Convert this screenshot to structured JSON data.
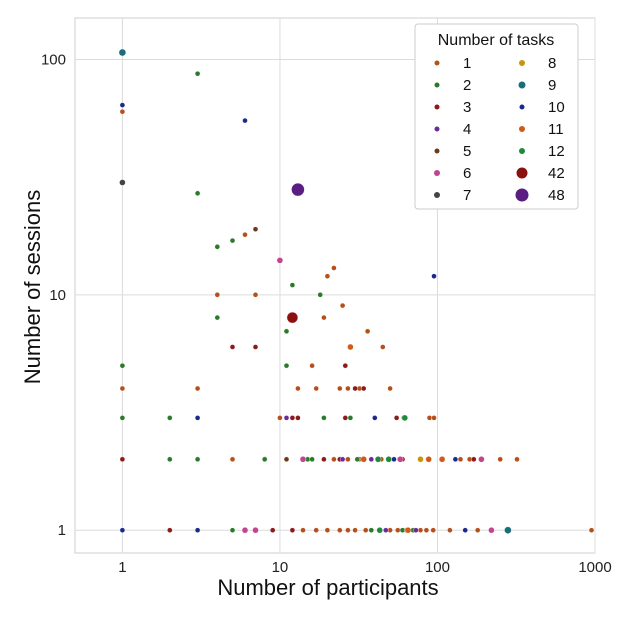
{
  "chart_data": {
    "type": "scatter",
    "xlabel": "Number of participants",
    "ylabel": "Number of sessions",
    "x_scale": "log",
    "y_scale": "log",
    "xlim": [
      0.5,
      1000
    ],
    "ylim": [
      0.8,
      150
    ],
    "x_ticks": [
      {
        "value": 1,
        "label": "1"
      },
      {
        "value": 10,
        "label": "10"
      },
      {
        "value": 100,
        "label": "100"
      },
      {
        "value": 1000,
        "label": "1000"
      }
    ],
    "y_ticks": [
      {
        "value": 1,
        "label": "1"
      },
      {
        "value": 10,
        "label": "10"
      },
      {
        "value": 100,
        "label": "100"
      }
    ],
    "grid": true,
    "legend": {
      "title": "Number of tasks",
      "position": "top-right",
      "columns": [
        [
          "1",
          "2",
          "3",
          "4",
          "5",
          "6",
          "7"
        ],
        [
          "8",
          "9",
          "10",
          "11",
          "12",
          "42",
          "48"
        ]
      ]
    },
    "series": [
      {
        "name": "1",
        "color": "#b5501c",
        "size": 2.5,
        "points": [
          [
            1,
            4
          ],
          [
            1,
            60
          ],
          [
            3,
            4
          ],
          [
            4,
            10
          ],
          [
            6,
            18
          ],
          [
            7,
            10
          ],
          [
            13,
            4
          ],
          [
            16,
            5
          ],
          [
            17,
            4
          ],
          [
            19,
            8
          ],
          [
            20,
            12
          ],
          [
            22,
            13
          ],
          [
            25,
            9
          ],
          [
            24,
            4
          ],
          [
            27,
            4
          ],
          [
            28,
            6
          ],
          [
            32,
            4
          ],
          [
            36,
            7
          ],
          [
            45,
            6
          ],
          [
            50,
            4
          ],
          [
            62,
            3
          ],
          [
            89,
            3
          ],
          [
            95,
            3
          ],
          [
            140,
            2
          ],
          [
            160,
            2
          ],
          [
            250,
            2
          ],
          [
            320,
            2
          ],
          [
            5,
            2
          ],
          [
            8,
            2
          ],
          [
            10,
            3
          ],
          [
            12,
            1
          ],
          [
            14,
            1
          ],
          [
            17,
            1
          ],
          [
            20,
            1
          ],
          [
            24,
            1
          ],
          [
            27,
            1
          ],
          [
            30,
            1
          ],
          [
            35,
            1
          ],
          [
            43,
            1
          ],
          [
            50,
            1
          ],
          [
            56,
            1
          ],
          [
            63,
            1
          ],
          [
            72,
            1
          ],
          [
            78,
            1
          ],
          [
            85,
            1
          ],
          [
            94,
            1
          ],
          [
            120,
            1
          ],
          [
            180,
            1
          ],
          [
            950,
            1
          ],
          [
            22,
            2
          ],
          [
            27,
            2
          ],
          [
            32,
            2
          ],
          [
            44,
            2
          ]
        ]
      },
      {
        "name": "2",
        "color": "#2a7a2a",
        "size": 2.5,
        "points": [
          [
            1,
            5
          ],
          [
            1,
            3
          ],
          [
            3,
            87
          ],
          [
            3,
            27
          ],
          [
            4,
            16
          ],
          [
            5,
            17
          ],
          [
            4,
            8
          ],
          [
            2,
            3
          ],
          [
            2,
            2
          ],
          [
            3,
            2
          ],
          [
            8,
            2
          ],
          [
            5,
            1
          ],
          [
            11,
            7
          ],
          [
            11,
            5
          ],
          [
            12,
            11
          ],
          [
            18,
            10
          ],
          [
            19,
            3
          ],
          [
            28,
            3
          ],
          [
            61,
            3
          ],
          [
            15,
            2
          ],
          [
            16,
            2
          ],
          [
            31,
            2
          ],
          [
            38,
            1
          ],
          [
            60,
            1
          ],
          [
            64,
            1
          ],
          [
            70,
            1
          ]
        ]
      },
      {
        "name": "3",
        "color": "#8b1a1a",
        "size": 2.5,
        "points": [
          [
            1,
            2
          ],
          [
            5,
            6
          ],
          [
            7,
            6
          ],
          [
            12,
            3
          ],
          [
            13,
            3
          ],
          [
            19,
            2
          ],
          [
            24,
            2
          ],
          [
            26,
            5
          ],
          [
            26,
            3
          ],
          [
            30,
            4
          ],
          [
            34,
            4
          ],
          [
            55,
            3
          ],
          [
            60,
            2
          ],
          [
            2,
            1
          ],
          [
            9,
            1
          ],
          [
            12,
            1
          ],
          [
            170,
            2
          ]
        ]
      },
      {
        "name": "4",
        "color": "#6a2a9a",
        "size": 2.5,
        "points": [
          [
            11,
            3
          ],
          [
            25,
            2
          ],
          [
            38,
            2
          ],
          [
            47,
            1
          ],
          [
            73,
            1
          ]
        ]
      },
      {
        "name": "5",
        "color": "#6b3a1a",
        "size": 2.5,
        "points": [
          [
            7,
            19
          ],
          [
            11,
            2
          ]
        ]
      },
      {
        "name": "6",
        "color": "#c0458e",
        "size": 3,
        "points": [
          [
            10,
            14
          ],
          [
            6,
            1
          ],
          [
            7,
            1
          ],
          [
            14,
            2
          ],
          [
            58,
            2
          ],
          [
            190,
            2
          ],
          [
            220,
            1
          ]
        ]
      },
      {
        "name": "7",
        "color": "#444444",
        "size": 3,
        "points": [
          [
            1,
            30
          ]
        ]
      },
      {
        "name": "8",
        "color": "#c8960c",
        "size": 3,
        "points": [
          [
            78,
            2
          ]
        ]
      },
      {
        "name": "9",
        "color": "#1a6e7a",
        "size": 3.5,
        "points": [
          [
            1,
            107
          ],
          [
            280,
            1
          ]
        ]
      },
      {
        "name": "10",
        "color": "#1a2a8a",
        "size": 2.5,
        "points": [
          [
            1,
            64
          ],
          [
            1,
            1
          ],
          [
            3,
            3
          ],
          [
            3,
            1
          ],
          [
            6,
            55
          ],
          [
            40,
            3
          ],
          [
            53,
            2
          ],
          [
            95,
            12
          ],
          [
            130,
            2
          ],
          [
            150,
            1
          ]
        ]
      },
      {
        "name": "11",
        "color": "#d05a1a",
        "size": 3,
        "points": [
          [
            28,
            6
          ],
          [
            34,
            2
          ],
          [
            65,
            1
          ],
          [
            88,
            2
          ],
          [
            107,
            2
          ]
        ]
      },
      {
        "name": "12",
        "color": "#1e8a3a",
        "size": 3,
        "points": [
          [
            42,
            2
          ],
          [
            49,
            2
          ],
          [
            62,
            3
          ],
          [
            43,
            1
          ]
        ]
      },
      {
        "name": "42",
        "color": "#8b1010",
        "size": 5.5,
        "points": [
          [
            12,
            8
          ]
        ]
      },
      {
        "name": "48",
        "color": "#5a1e82",
        "size": 6.5,
        "points": [
          [
            13,
            28
          ]
        ]
      }
    ]
  }
}
